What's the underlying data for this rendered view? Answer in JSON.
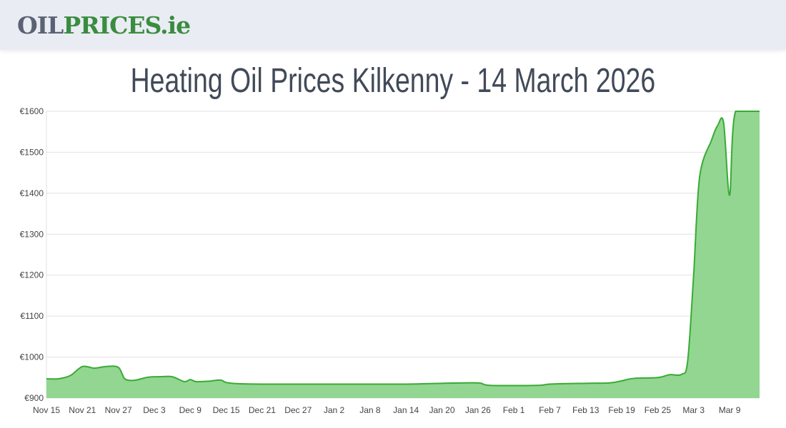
{
  "header": {
    "logo_part1": "OIL",
    "logo_part2": "PRICES.ie"
  },
  "page_title": "Heating Oil Prices Kilkenny - 14 March 2026",
  "colors": {
    "line": "#3aaa35",
    "fill": "#92d691",
    "grid": "#e2e2e2",
    "title": "#414a59"
  },
  "chart_data": {
    "type": "area",
    "title": "",
    "xlabel": "",
    "ylabel": "",
    "ylim": [
      900,
      1600
    ],
    "xlim": [
      "2025-11-15",
      "2026-03-14"
    ],
    "grid": true,
    "y_ticks": [
      "€900",
      "€1000",
      "€1100",
      "€1200",
      "€1300",
      "€1400",
      "€1500",
      "€1600"
    ],
    "y_tick_values": [
      900,
      1000,
      1100,
      1200,
      1300,
      1400,
      1500,
      1600
    ],
    "x_ticks": [
      "Nov 15",
      "Nov 21",
      "Nov 27",
      "Dec 3",
      "Dec 9",
      "Dec 15",
      "Dec 21",
      "Dec 27",
      "Jan 2",
      "Jan 8",
      "Jan 14",
      "Jan 20",
      "Jan 26",
      "Feb 1",
      "Feb 7",
      "Feb 13",
      "Feb 19",
      "Feb 25",
      "Mar 3",
      "Mar 9"
    ],
    "x_tick_dates": [
      "2025-11-15",
      "2025-11-21",
      "2025-11-27",
      "2025-12-03",
      "2025-12-09",
      "2025-12-15",
      "2025-12-21",
      "2025-12-27",
      "2026-01-02",
      "2026-01-08",
      "2026-01-14",
      "2026-01-20",
      "2026-01-26",
      "2026-02-01",
      "2026-02-07",
      "2026-02-13",
      "2026-02-19",
      "2026-02-25",
      "2026-03-03",
      "2026-03-09"
    ],
    "series": [
      {
        "x": [
          "2025-11-15",
          "2025-11-17",
          "2025-11-19",
          "2025-11-21",
          "2025-11-23",
          "2025-11-25",
          "2025-11-27",
          "2025-11-28",
          "2025-11-29",
          "2025-11-30",
          "2025-12-02",
          "2025-12-04",
          "2025-12-06",
          "2025-12-08",
          "2025-12-09",
          "2025-12-10",
          "2025-12-12",
          "2025-12-14",
          "2025-12-15",
          "2025-12-17",
          "2025-12-21",
          "2025-12-27",
          "2026-01-02",
          "2026-01-14",
          "2026-01-20",
          "2026-01-26",
          "2026-01-28",
          "2026-02-05",
          "2026-02-07",
          "2026-02-13",
          "2026-02-17",
          "2026-02-19",
          "2026-02-21",
          "2026-02-25",
          "2026-02-27",
          "2026-03-01",
          "2026-03-02",
          "2026-03-03",
          "2026-03-04",
          "2026-03-06",
          "2026-03-07",
          "2026-03-08",
          "2026-03-09",
          "2026-03-10",
          "2026-03-14"
        ],
        "values": [
          947,
          947,
          955,
          977,
          973,
          977,
          975,
          948,
          943,
          944,
          951,
          952,
          952,
          940,
          945,
          940,
          941,
          944,
          938,
          935,
          934,
          934,
          934,
          934,
          936,
          937,
          931,
          931,
          934,
          936,
          937,
          942,
          948,
          950,
          957,
          958,
          990,
          1200,
          1440,
          1530,
          1565,
          1572,
          1395,
          1600,
          1600
        ]
      }
    ]
  }
}
